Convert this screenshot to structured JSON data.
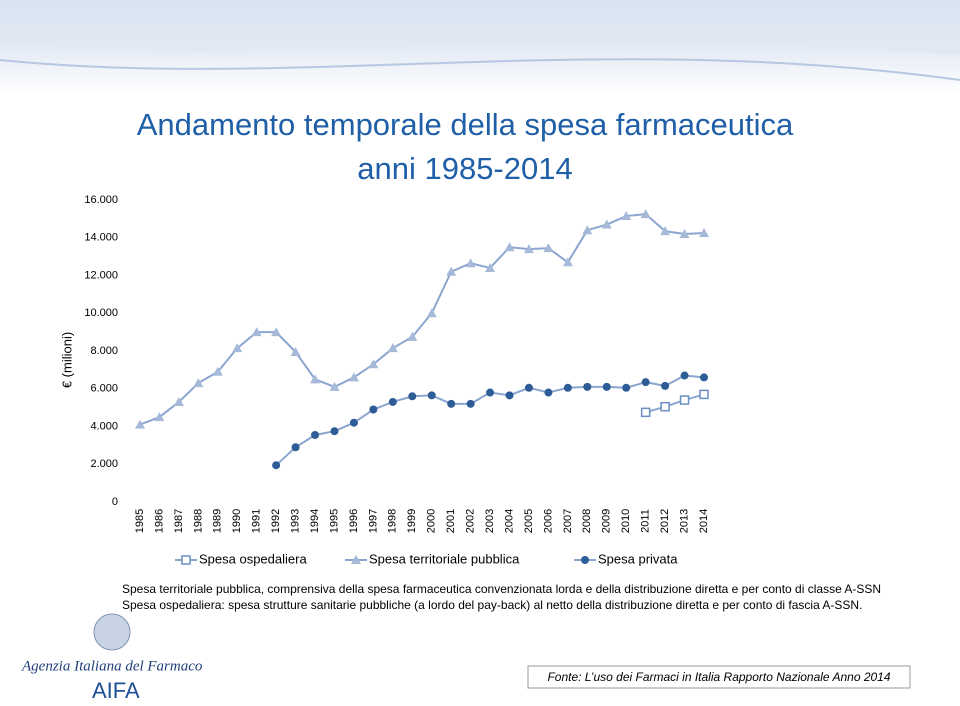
{
  "chart_data": {
    "type": "line",
    "title": "Andamento temporale della spesa farmaceutica",
    "subtitle": "anni 1985-2014",
    "y_label": "€ (milioni)",
    "categories": [
      "1985",
      "1986",
      "1987",
      "1988",
      "1989",
      "1990",
      "1991",
      "1992",
      "1993",
      "1994",
      "1995",
      "1996",
      "1997",
      "1998",
      "1999",
      "2000",
      "2001",
      "2002",
      "2003",
      "2004",
      "2005",
      "2006",
      "2007",
      "2008",
      "2009",
      "2010",
      "2011",
      "2012",
      "2013",
      "2014"
    ],
    "series": [
      {
        "name": "Spesa ospedaliera",
        "color": "#6b8fc4",
        "marker": "square",
        "values": [
          null,
          null,
          null,
          null,
          null,
          null,
          null,
          null,
          null,
          null,
          null,
          null,
          null,
          null,
          null,
          null,
          null,
          null,
          null,
          null,
          null,
          null,
          null,
          null,
          null,
          null,
          4750,
          5050,
          5400,
          5700
        ]
      },
      {
        "name": "Spesa territoriale pubblica",
        "color": "#a6b9d8",
        "marker": "triangle",
        "values": [
          4100,
          4500,
          5300,
          6300,
          6900,
          8150,
          9000,
          9000,
          7950,
          6500,
          6100,
          6600,
          7300,
          8150,
          8750,
          10000,
          12200,
          12650,
          12400,
          13500,
          13400,
          13450,
          12700,
          14400,
          14700,
          15150,
          15250,
          14350,
          14200,
          14250
        ]
      },
      {
        "name": "Spesa privata",
        "color": "#2e5c96",
        "marker": "circle",
        "values": [
          null,
          null,
          null,
          null,
          null,
          null,
          null,
          1950,
          2900,
          3550,
          3750,
          4200,
          4900,
          5300,
          5600,
          5650,
          5200,
          5200,
          5800,
          5650,
          6050,
          5800,
          6050,
          6100,
          6100,
          6050,
          6350,
          6150,
          6700,
          6600
        ]
      }
    ],
    "ylim": [
      0,
      16000
    ],
    "yticks": [
      0,
      {
        "value": 2000,
        "label": "2.000"
      },
      {
        "value": 4000,
        "label": "4.000"
      },
      {
        "value": 6000,
        "label": "6.000"
      },
      {
        "value": 8000,
        "label": "8.000"
      },
      {
        "value": 10000,
        "label": "10.000"
      },
      {
        "value": 12000,
        "label": "12.000"
      },
      {
        "value": 14000,
        "label": "14.000"
      },
      {
        "value": 16000,
        "label": "16.000"
      }
    ],
    "grid": false,
    "legend": "bottom"
  },
  "notes": [
    "Spesa territoriale pubblica, comprensiva della spesa farmaceutica convenzionata lorda e della distribuzione diretta e per conto di classe A-SSN",
    "Spesa ospedaliera: spesa strutture sanitarie pubbliche (a lordo del pay-back) al netto della distribuzione diretta e per conto di fascia A-SSN."
  ],
  "source": "Fonte: L’uso dei Farmaci in Italia Rapporto Nazionale Anno 2014",
  "logo": {
    "name": "Agenzia Italiana del Farmaco",
    "acronym": "AIFA"
  }
}
